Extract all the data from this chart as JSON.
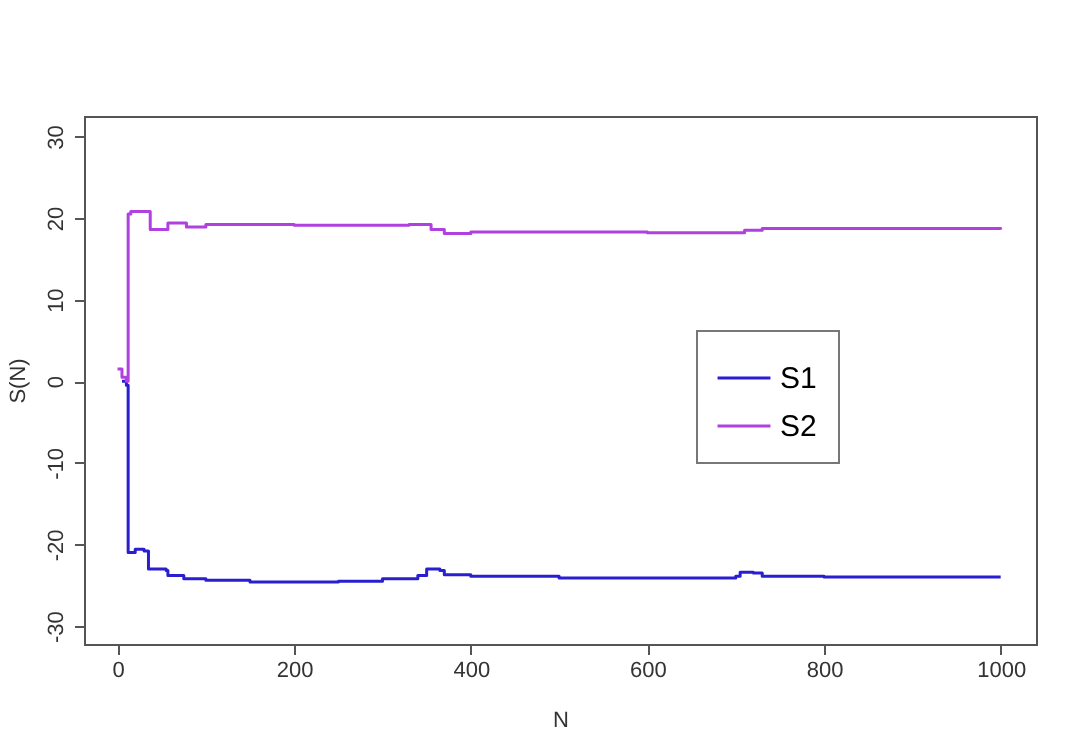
{
  "chart_data": {
    "type": "step",
    "xlabel": "N",
    "ylabel": "S(N)",
    "xlim": [
      -38,
      1040
    ],
    "ylim": [
      -32.2,
      32.5
    ],
    "xticks": [
      0,
      200,
      400,
      600,
      800,
      1000
    ],
    "yticks": [
      -30,
      -20,
      -10,
      0,
      10,
      20,
      30
    ],
    "grid": false,
    "legend": "right",
    "line_style": "solid",
    "marker": "none",
    "series": [
      {
        "name": "S1",
        "color": "#2a1fd0",
        "x": [
          5,
          10,
          12,
          20,
          30,
          35,
          55,
          57,
          75,
          100,
          150,
          250,
          300,
          340,
          350,
          365,
          370,
          400,
          500,
          600,
          700,
          705,
          720,
          730,
          800,
          1000
        ],
        "values": [
          0,
          -0.5,
          -21,
          -20.6,
          -20.8,
          -23,
          -23.2,
          -23.8,
          -24.2,
          -24.4,
          -24.6,
          -24.5,
          -24.2,
          -23.8,
          -23,
          -23.2,
          -23.7,
          -23.9,
          -24.1,
          -24.1,
          -23.9,
          -23.4,
          -23.5,
          -23.9,
          -24,
          -24
        ]
      },
      {
        "name": "S2",
        "color": "#b040e0",
        "x": [
          0,
          5,
          10,
          12,
          15,
          35,
          37,
          55,
          57,
          75,
          78,
          100,
          200,
          330,
          350,
          355,
          370,
          400,
          600,
          700,
          710,
          730,
          1000
        ],
        "values": [
          1.5,
          0.5,
          0,
          20.5,
          20.8,
          20.8,
          18.6,
          18.6,
          19.4,
          19.4,
          18.9,
          19.2,
          19.1,
          19.2,
          19.2,
          18.6,
          18.1,
          18.3,
          18.2,
          18.2,
          18.5,
          18.7,
          18.6
        ]
      }
    ]
  }
}
